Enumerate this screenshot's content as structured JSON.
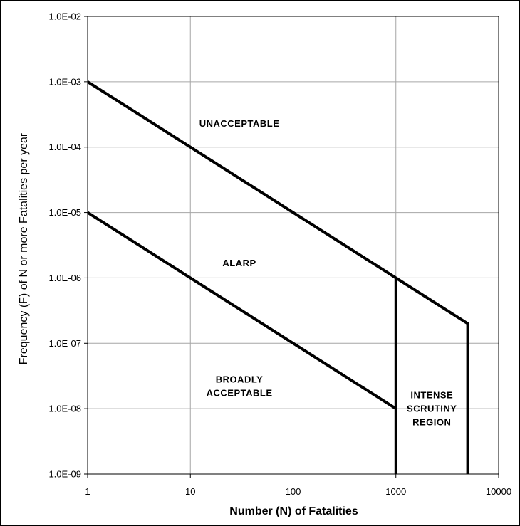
{
  "chart_data": {
    "type": "line",
    "xscale": "log",
    "yscale": "log",
    "xlim": [
      1,
      10000
    ],
    "ylim": [
      1e-09,
      0.01
    ],
    "grid": true,
    "xlabel": "Number (N) of Fatalities",
    "ylabel": "Frequency (F) of N or more Fatalities per year",
    "x_ticks": [
      {
        "value": 1,
        "label": "1"
      },
      {
        "value": 10,
        "label": "10"
      },
      {
        "value": 100,
        "label": "100"
      },
      {
        "value": 1000,
        "label": "1000"
      },
      {
        "value": 10000,
        "label": "10000"
      }
    ],
    "y_ticks": [
      {
        "value": 0.01,
        "label": "1.0E-02"
      },
      {
        "value": 0.001,
        "label": "1.0E-03"
      },
      {
        "value": 0.0001,
        "label": "1.0E-04"
      },
      {
        "value": 1e-05,
        "label": "1.0E-05"
      },
      {
        "value": 1e-06,
        "label": "1.0E-06"
      },
      {
        "value": 1e-07,
        "label": "1.0E-07"
      },
      {
        "value": 1e-08,
        "label": "1.0E-08"
      },
      {
        "value": 1e-09,
        "label": "1.0E-09"
      }
    ],
    "series": [
      {
        "points": [
          [
            1,
            0.001
          ],
          [
            1000,
            1e-06
          ],
          [
            5000,
            2e-07
          ],
          [
            5000,
            1e-09
          ]
        ]
      },
      {
        "points": [
          [
            1,
            1e-05
          ],
          [
            1000,
            1e-08
          ]
        ]
      },
      {
        "points": [
          [
            1000,
            1e-06
          ],
          [
            1000,
            1e-09
          ]
        ]
      }
    ],
    "annotations": [
      {
        "lines": [
          "UNACCEPTABLE"
        ],
        "x": 30,
        "y": 0.00023
      },
      {
        "lines": [
          "ALARP"
        ],
        "x": 30,
        "y": 1.7e-06
      },
      {
        "lines": [
          "BROADLY",
          "ACCEPTABLE"
        ],
        "x": 30,
        "y": 2.2e-08
      },
      {
        "lines": [
          "INTENSE",
          "SCRUTINY",
          "REGION"
        ],
        "x": 2240,
        "y": 1e-08
      }
    ],
    "line_color": "#000000",
    "grid_color": "#a6a6a6"
  }
}
